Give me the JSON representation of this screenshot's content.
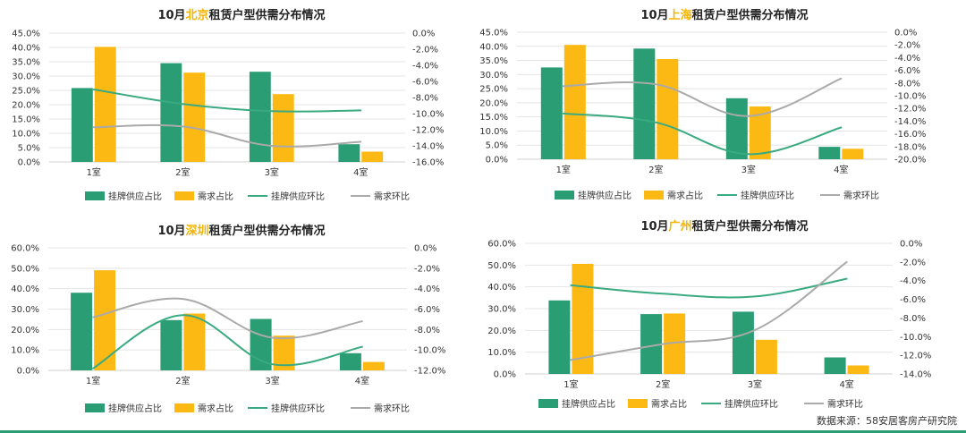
{
  "colors": {
    "supply_share": "#2a9d74",
    "demand_share": "#fdb913",
    "supply_mom": "#3aaa80",
    "demand_mom": "#aaaaaa",
    "city_highlight": "#f5b400"
  },
  "legend": {
    "supply_share": "挂牌供应占比",
    "demand_share": "需求占比",
    "supply_mom": "挂牌供应环比",
    "demand_mom": "需求环比"
  },
  "source": "数据来源：58安居客房产研究院",
  "chart_data": [
    {
      "id": "bj",
      "type": "bar+line",
      "title_prefix": "10月",
      "city": "北京",
      "title_suffix": "租赁户型供需分布情况",
      "categories": [
        "1室",
        "2室",
        "3室",
        "4室"
      ],
      "series": [
        {
          "name": "挂牌供应占比",
          "kind": "bar",
          "axis": "left",
          "values": [
            25.8,
            34.5,
            31.5,
            6.2
          ]
        },
        {
          "name": "需求占比",
          "kind": "bar",
          "axis": "left",
          "values": [
            40.2,
            31.2,
            23.7,
            3.6
          ]
        },
        {
          "name": "挂牌供应环比",
          "kind": "line",
          "axis": "right",
          "values": [
            -7.0,
            -8.8,
            -9.7,
            -9.6
          ]
        },
        {
          "name": "需求环比",
          "kind": "line",
          "axis": "right",
          "values": [
            -11.7,
            -11.6,
            -14.0,
            -13.5
          ]
        }
      ],
      "y_left": {
        "min": 0,
        "max": 45,
        "step": 5,
        "ticks": [
          "0.0%",
          "5.0%",
          "10.0%",
          "15.0%",
          "20.0%",
          "25.0%",
          "30.0%",
          "35.0%",
          "40.0%",
          "45.0%"
        ]
      },
      "y_right": {
        "min": -16,
        "max": 0,
        "step": 2,
        "ticks": [
          "0.0%",
          "-2.0%",
          "-4.0%",
          "-6.0%",
          "-8.0%",
          "-10.0%",
          "-12.0%",
          "-14.0%",
          "-16.0%"
        ]
      },
      "grid": true,
      "legend_position": "bottom"
    },
    {
      "id": "sh",
      "type": "bar+line",
      "title_prefix": "10月",
      "city": "上海",
      "title_suffix": "租赁户型供需分布情况",
      "categories": [
        "1室",
        "2室",
        "3室",
        "4室"
      ],
      "series": [
        {
          "name": "挂牌供应占比",
          "kind": "bar",
          "axis": "left",
          "values": [
            32.5,
            39.2,
            21.6,
            4.4
          ]
        },
        {
          "name": "需求占比",
          "kind": "bar",
          "axis": "left",
          "values": [
            40.5,
            35.5,
            18.7,
            3.7
          ]
        },
        {
          "name": "挂牌供应环比",
          "kind": "line",
          "axis": "right",
          "values": [
            -12.8,
            -14.2,
            -19.2,
            -15.0
          ]
        },
        {
          "name": "需求环比",
          "kind": "line",
          "axis": "right",
          "values": [
            -8.5,
            -8.2,
            -13.2,
            -7.3
          ]
        }
      ],
      "y_left": {
        "min": 0,
        "max": 45,
        "step": 5,
        "ticks": [
          "0.0%",
          "5.0%",
          "10.0%",
          "15.0%",
          "20.0%",
          "25.0%",
          "30.0%",
          "35.0%",
          "40.0%",
          "45.0%"
        ]
      },
      "y_right": {
        "min": -20,
        "max": 0,
        "step": 2,
        "ticks": [
          "0.0%",
          "-2.0%",
          "-4.0%",
          "-6.0%",
          "-8.0%",
          "-10.0%",
          "-12.0%",
          "-14.0%",
          "-16.0%",
          "-18.0%",
          "-20.0%"
        ]
      },
      "grid": true,
      "legend_position": "bottom"
    },
    {
      "id": "sz",
      "type": "bar+line",
      "title_prefix": "10月",
      "city": "深圳",
      "title_suffix": "租赁户型供需分布情况",
      "categories": [
        "1室",
        "2室",
        "3室",
        "4室"
      ],
      "series": [
        {
          "name": "挂牌供应占比",
          "kind": "bar",
          "axis": "left",
          "values": [
            38.0,
            24.6,
            25.2,
            8.4
          ]
        },
        {
          "name": "需求占比",
          "kind": "bar",
          "axis": "left",
          "values": [
            49.0,
            27.8,
            17.0,
            4.1
          ]
        },
        {
          "name": "挂牌供应环比",
          "kind": "line",
          "axis": "right",
          "values": [
            -11.8,
            -6.6,
            -11.4,
            -9.7
          ]
        },
        {
          "name": "需求环比",
          "kind": "line",
          "axis": "right",
          "values": [
            -6.8,
            -5.0,
            -8.8,
            -7.2
          ]
        }
      ],
      "y_left": {
        "min": 0,
        "max": 60,
        "step": 10,
        "ticks": [
          "0.0%",
          "10.0%",
          "20.0%",
          "30.0%",
          "40.0%",
          "50.0%",
          "60.0%"
        ]
      },
      "y_right": {
        "min": -12,
        "max": 0,
        "step": 2,
        "ticks": [
          "0.0%",
          "-2.0%",
          "-4.0%",
          "-6.0%",
          "-8.0%",
          "-10.0%",
          "-12.0%"
        ]
      },
      "grid": true,
      "legend_position": "bottom"
    },
    {
      "id": "gz",
      "type": "bar+line",
      "title_prefix": "10月",
      "city": "广州",
      "title_suffix": "租赁户型供需分布情况",
      "categories": [
        "1室",
        "2室",
        "3室",
        "4室"
      ],
      "series": [
        {
          "name": "挂牌供应占比",
          "kind": "bar",
          "axis": "left",
          "values": [
            33.8,
            27.5,
            28.6,
            7.6
          ]
        },
        {
          "name": "需求占比",
          "kind": "bar",
          "axis": "left",
          "values": [
            50.6,
            27.8,
            15.7,
            3.9
          ]
        },
        {
          "name": "挂牌供应环比",
          "kind": "line",
          "axis": "right",
          "values": [
            -4.5,
            -5.4,
            -5.7,
            -3.8
          ]
        },
        {
          "name": "需求环比",
          "kind": "line",
          "axis": "right",
          "values": [
            -12.5,
            -10.8,
            -9.3,
            -2.0
          ]
        }
      ],
      "y_left": {
        "min": 0,
        "max": 60,
        "step": 10,
        "ticks": [
          "0.0%",
          "10.0%",
          "20.0%",
          "30.0%",
          "40.0%",
          "50.0%",
          "60.0%"
        ]
      },
      "y_right": {
        "min": -14,
        "max": 0,
        "step": 2,
        "ticks": [
          "0.0%",
          "-2.0%",
          "-4.0%",
          "-6.0%",
          "-8.0%",
          "-10.0%",
          "-12.0%",
          "-14.0%"
        ]
      },
      "grid": true,
      "legend_position": "bottom"
    }
  ]
}
